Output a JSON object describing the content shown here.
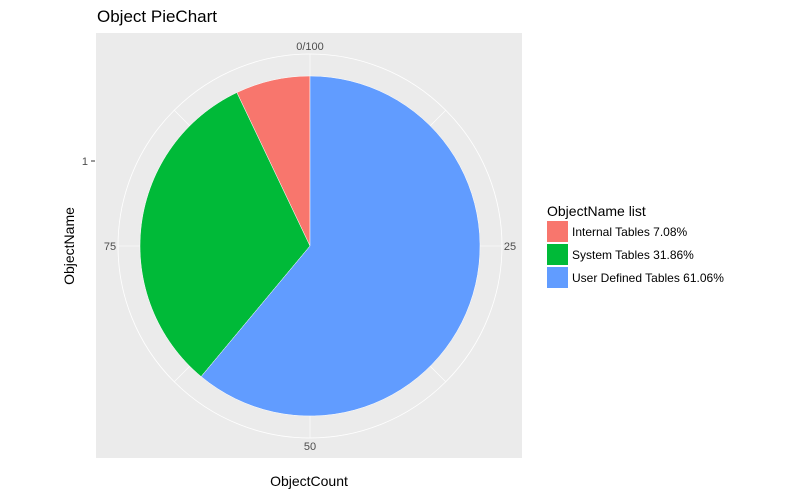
{
  "chart_data": {
    "type": "pie",
    "title": "Object PieChart",
    "xlabel": "ObjectCount",
    "ylabel": "ObjectName",
    "y_ticks": [
      "1"
    ],
    "theta_ticks": [
      {
        "label": "0/100",
        "value": 0
      },
      {
        "label": "25",
        "value": 25
      },
      {
        "label": "50",
        "value": 50
      },
      {
        "label": "75",
        "value": 75
      }
    ],
    "legend": {
      "title": "ObjectName list",
      "position": "right"
    },
    "categories": [
      "Internal Tables 7.08%",
      "System Tables 31.86%",
      "User Defined Tables 61.06%"
    ],
    "values": [
      7.08,
      31.86,
      61.06
    ],
    "colors": [
      "#F8766D",
      "#00BA38",
      "#619CFF"
    ],
    "background": "#EBEBEB",
    "grid_color": "#FFFFFF"
  }
}
